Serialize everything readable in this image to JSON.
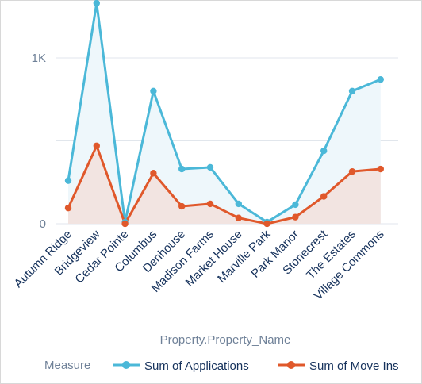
{
  "chart_data": {
    "type": "line",
    "xlabel": "Property.Property_Name",
    "ylabel": "",
    "ylim": [
      0,
      1300
    ],
    "yticks": [
      0,
      500,
      1000
    ],
    "ytick_labels": [
      "0",
      "",
      "1K"
    ],
    "categories": [
      "Autumn Ridge",
      "Bridgeview",
      "Cedar Pointe",
      "Columbus",
      "Denhouse",
      "Madison Farms",
      "Market House",
      "Marville Park",
      "Park Manor",
      "Stonecrest",
      "The Estates",
      "Village Commons"
    ],
    "series": [
      {
        "name": "Sum of Applications",
        "color": "#4bb8d8",
        "fill": "#eef7fb",
        "values": [
          260,
          1330,
          10,
          800,
          330,
          340,
          120,
          10,
          115,
          440,
          800,
          870
        ]
      },
      {
        "name": "Sum of Move Ins",
        "color": "#e0582b",
        "fill": "#f2e4e1",
        "values": [
          95,
          470,
          0,
          305,
          105,
          120,
          35,
          0,
          40,
          165,
          315,
          330
        ]
      }
    ],
    "legend": {
      "title": "Measure",
      "placement": "bottom"
    },
    "grid": true
  }
}
